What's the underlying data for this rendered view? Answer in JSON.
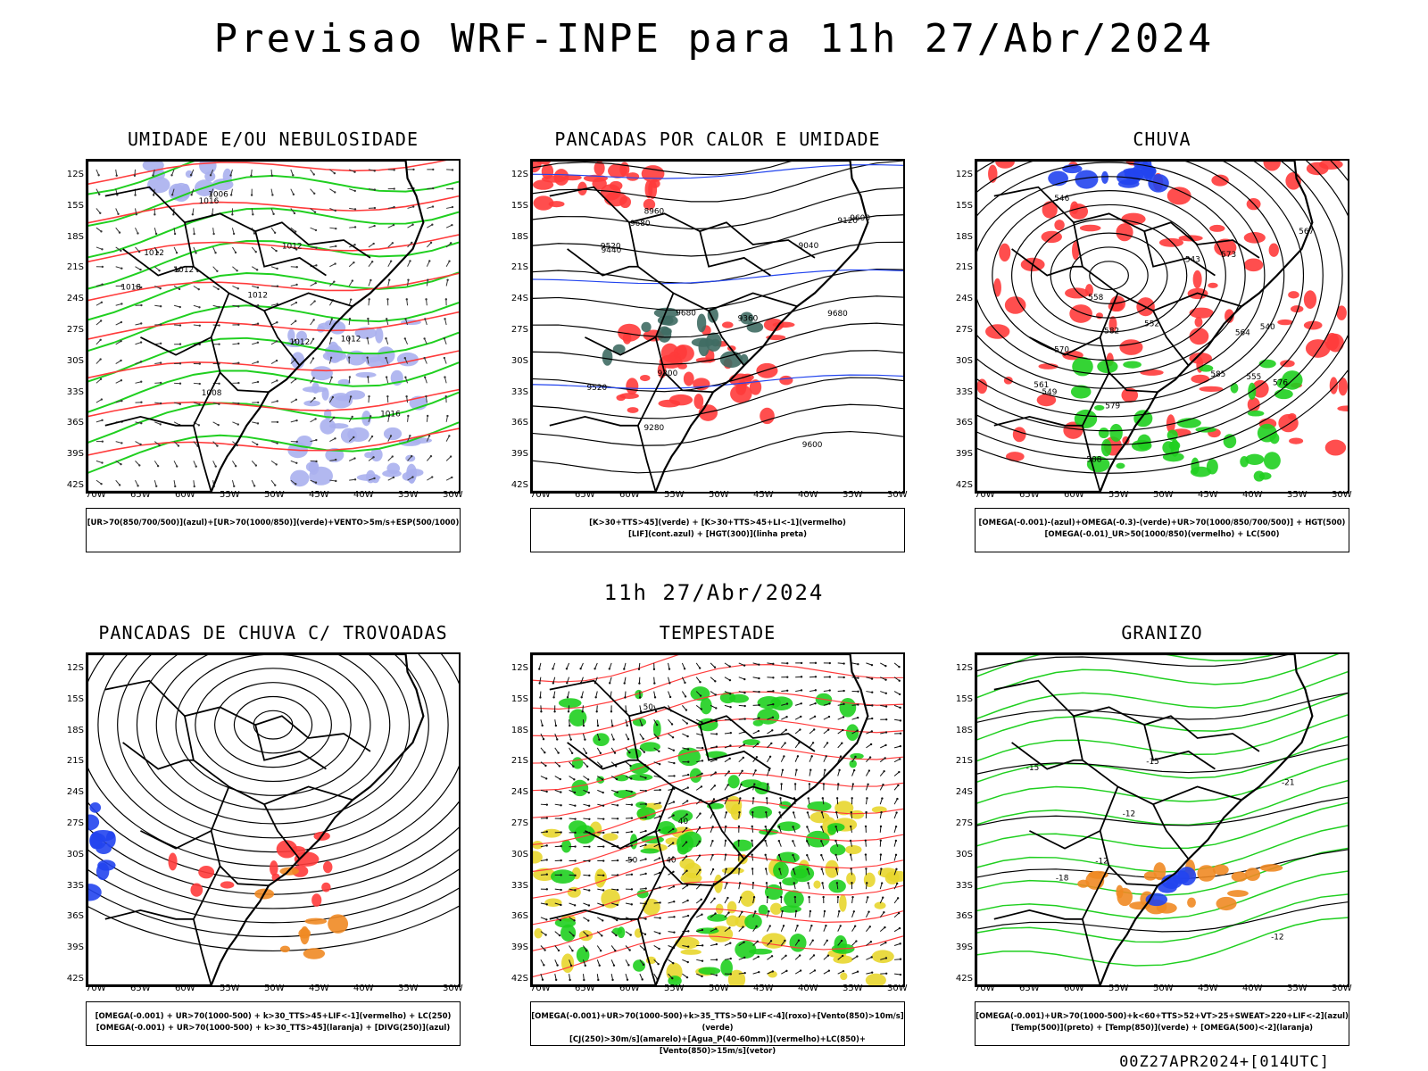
{
  "title": "Previsao WRF-INPE  para 11h 27/Abr/2024",
  "subtitle": "11h 27/Abr/2024",
  "footer": "00Z27APR2024+[014UTC]",
  "lat_ticks": [
    "12S",
    "15S",
    "18S",
    "21S",
    "24S",
    "27S",
    "30S",
    "33S",
    "36S",
    "39S",
    "42S"
  ],
  "lon_ticks": [
    "70W",
    "65W",
    "60W",
    "55W",
    "50W",
    "45W",
    "40W",
    "35W",
    "30W"
  ],
  "panels": [
    {
      "title": "UMIDADE E/OU NEBULOSIDADE",
      "legend": [
        "[UR>70(850/700/500)](azul)+[UR>70(1000/850)](verde)+VENTO>5m/s+ESP(500/1000)"
      ],
      "labels": [
        "1012",
        "1012",
        "1012",
        "1016",
        "1008",
        "1012",
        "1018",
        "1012",
        "1016",
        "1012",
        "1006"
      ]
    },
    {
      "title": "PANCADAS POR CALOR E UMIDADE",
      "legend": [
        "[K>30+TTS>45](verde) + [K>30+TTS>45+LI<-1](vermelho)",
        "[LIF](cont.azul) + [HGT(300)](linha preta)"
      ],
      "labels": [
        "9680",
        "9680",
        "9680",
        "9600",
        "9520",
        "9440",
        "9360",
        "9280",
        "9200",
        "9120",
        "9040",
        "8960",
        "9520",
        "9600"
      ]
    },
    {
      "title": "CHUVA",
      "legend": [
        "[OMEGA(-0.001)-(azul)+OMEGA(-0.3)-(verde)+UR>70(1000/850/700/500)] + HGT(500)",
        "[OMEGA(-0.01)_UR>50(1000/850)(vermelho) + LC(500)"
      ],
      "labels": [
        "588",
        "585",
        "582",
        "579",
        "576",
        "573",
        "570",
        "567",
        "564",
        "561",
        "558",
        "555",
        "552",
        "549",
        "546",
        "543",
        "540"
      ]
    },
    {
      "title": "PANCADAS DE CHUVA C/ TROVOADAS",
      "legend": [
        "[OMEGA(-0.001) + UR>70(1000-500) + k>30_TTS>45+LIF<-1](vermelho) + LC(250)",
        "[OMEGA(-0.001) + UR>70(1000-500) + k>30_TTS>45](laranja) + [DIVG(250)](azul)"
      ],
      "labels": []
    },
    {
      "title": "TEMPESTADE",
      "legend": [
        "[OMEGA(-0.001)+UR>70(1000-500)+k>35_TTS>50+LIF<-4](roxo)+[Vento(850)>10m/s](verde)",
        "[CJ(250)>30m/s](amarelo)+[Agua_P(40-60mm)](vermelho)+LC(850)+[Vento(850)>15m/s](vetor)"
      ],
      "labels": [
        "40",
        "50",
        "50",
        "40"
      ]
    },
    {
      "title": "GRANIZO",
      "legend": [
        "[OMEGA(-0.001)+UR>70(1000-500)+k<60+TTS>52+VT>25+SWEAT>220+LIF<-2](azul)",
        "[Temp(500)](preto) + [Temp(850)](verde) + [OMEGA(500)<-2](laranja)"
      ],
      "labels": [
        "-12",
        "-15",
        "-18",
        "-21",
        "-12",
        "-15",
        "-12"
      ]
    }
  ],
  "colors": {
    "red": "#ff3b3b",
    "green": "#1fcf1f",
    "blue": "#2244ee",
    "lavender": "#aab0ee",
    "yellow": "#e8d62e",
    "teal": "#3f6b63",
    "orange": "#f08a24"
  }
}
